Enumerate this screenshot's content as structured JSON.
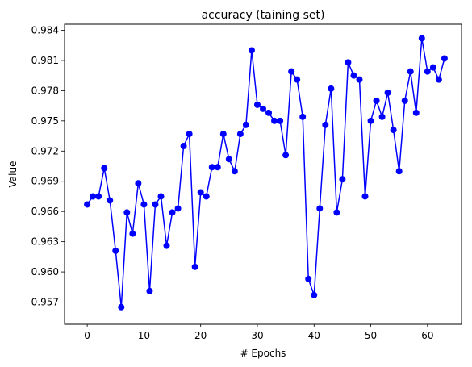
{
  "chart_data": {
    "type": "line",
    "title": "accuracy (taining set)",
    "xlabel": "# Epochs",
    "ylabel": "Value",
    "xlim": [
      -4,
      66
    ],
    "ylim": [
      0.9548,
      0.9846
    ],
    "x_ticks": [
      0,
      10,
      20,
      30,
      40,
      50,
      60
    ],
    "x_tick_labels": [
      "0",
      "10",
      "20",
      "30",
      "40",
      "50",
      "60"
    ],
    "y_ticks": [
      0.957,
      0.96,
      0.963,
      0.966,
      0.969,
      0.972,
      0.975,
      0.978,
      0.981,
      0.984
    ],
    "y_tick_labels": [
      "0.957",
      "0.960",
      "0.963",
      "0.966",
      "0.969",
      "0.972",
      "0.975",
      "0.978",
      "0.981",
      "0.984"
    ],
    "grid": false,
    "legend": false,
    "color": "#0000ff",
    "x": [
      0,
      1,
      2,
      3,
      4,
      5,
      6,
      7,
      8,
      9,
      10,
      11,
      12,
      13,
      14,
      15,
      16,
      17,
      18,
      19,
      20,
      21,
      22,
      23,
      24,
      25,
      26,
      27,
      28,
      29,
      30,
      31,
      32,
      33,
      34,
      35,
      36,
      37,
      38,
      39,
      40,
      41,
      42,
      43,
      44,
      45,
      46,
      47,
      48,
      49,
      50,
      51,
      52,
      53,
      54,
      55,
      56,
      57,
      58,
      59,
      60,
      61,
      62,
      63
    ],
    "values": [
      0.9667,
      0.9675,
      0.9675,
      0.9703,
      0.9671,
      0.9621,
      0.9565,
      0.9659,
      0.9638,
      0.9688,
      0.9667,
      0.9581,
      0.9667,
      0.9675,
      0.9626,
      0.9659,
      0.9663,
      0.9725,
      0.9737,
      0.9605,
      0.9679,
      0.9675,
      0.9704,
      0.9704,
      0.9737,
      0.9712,
      0.97,
      0.9737,
      0.9746,
      0.982,
      0.9766,
      0.9762,
      0.9758,
      0.975,
      0.975,
      0.9716,
      0.9799,
      0.9791,
      0.9754,
      0.9593,
      0.9577,
      0.9663,
      0.9746,
      0.9782,
      0.9659,
      0.9692,
      0.9808,
      0.9795,
      0.9791,
      0.9675,
      0.975,
      0.977,
      0.9754,
      0.9778,
      0.9741,
      0.97,
      0.977,
      0.9799,
      0.9758,
      0.9832,
      0.9799,
      0.9803,
      0.9791,
      0.9812
    ]
  }
}
